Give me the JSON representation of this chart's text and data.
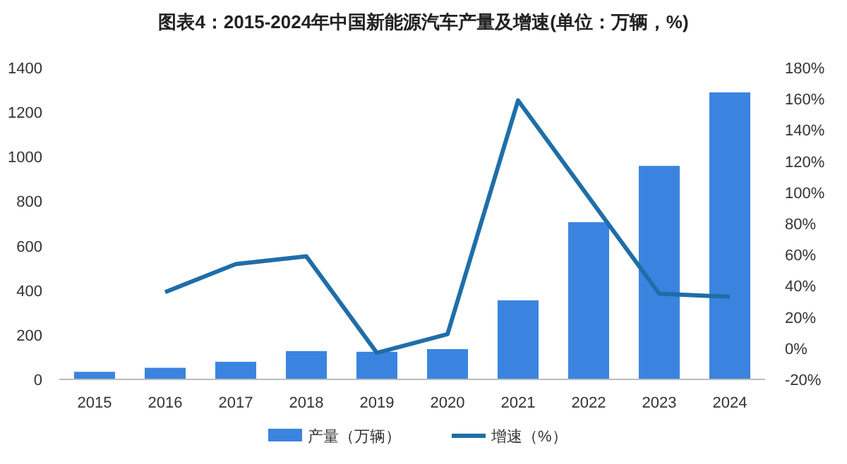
{
  "chart_data": {
    "type": "bar",
    "title": "图表4：2015-2024年中国新能源汽车产量及增速(单位：万辆，%)",
    "categories": [
      "2015",
      "2016",
      "2017",
      "2018",
      "2019",
      "2020",
      "2021",
      "2022",
      "2023",
      "2024"
    ],
    "series": [
      {
        "name": "产量（万辆）",
        "color": "#3a84e0",
        "values": [
          34,
          52,
          79,
          127,
          124,
          136,
          355,
          706,
          959,
          1289
        ]
      },
      {
        "name": "增速（%）",
        "type": "line",
        "axis": "y2",
        "color": "#1f6ea8",
        "values": [
          null,
          36,
          54,
          59,
          -3,
          9,
          159,
          97,
          35,
          33
        ]
      }
    ],
    "ylim": [
      0,
      1400
    ],
    "yticks": [
      0,
      200,
      400,
      600,
      800,
      1000,
      1200,
      1400
    ],
    "y2lim": [
      -20,
      180
    ],
    "y2ticks": [
      {
        "value": -20,
        "label": "-20%"
      },
      {
        "value": 0,
        "label": "0%"
      },
      {
        "value": 20,
        "label": "20%"
      },
      {
        "value": 40,
        "label": "40%"
      },
      {
        "value": 60,
        "label": "60%"
      },
      {
        "value": 80,
        "label": "80%"
      },
      {
        "value": 100,
        "label": "100%"
      },
      {
        "value": 120,
        "label": "120%"
      },
      {
        "value": 140,
        "label": "140%"
      },
      {
        "value": 160,
        "label": "160%"
      },
      {
        "value": 180,
        "label": "180%"
      }
    ],
    "grid": false,
    "legend": "bottom"
  }
}
